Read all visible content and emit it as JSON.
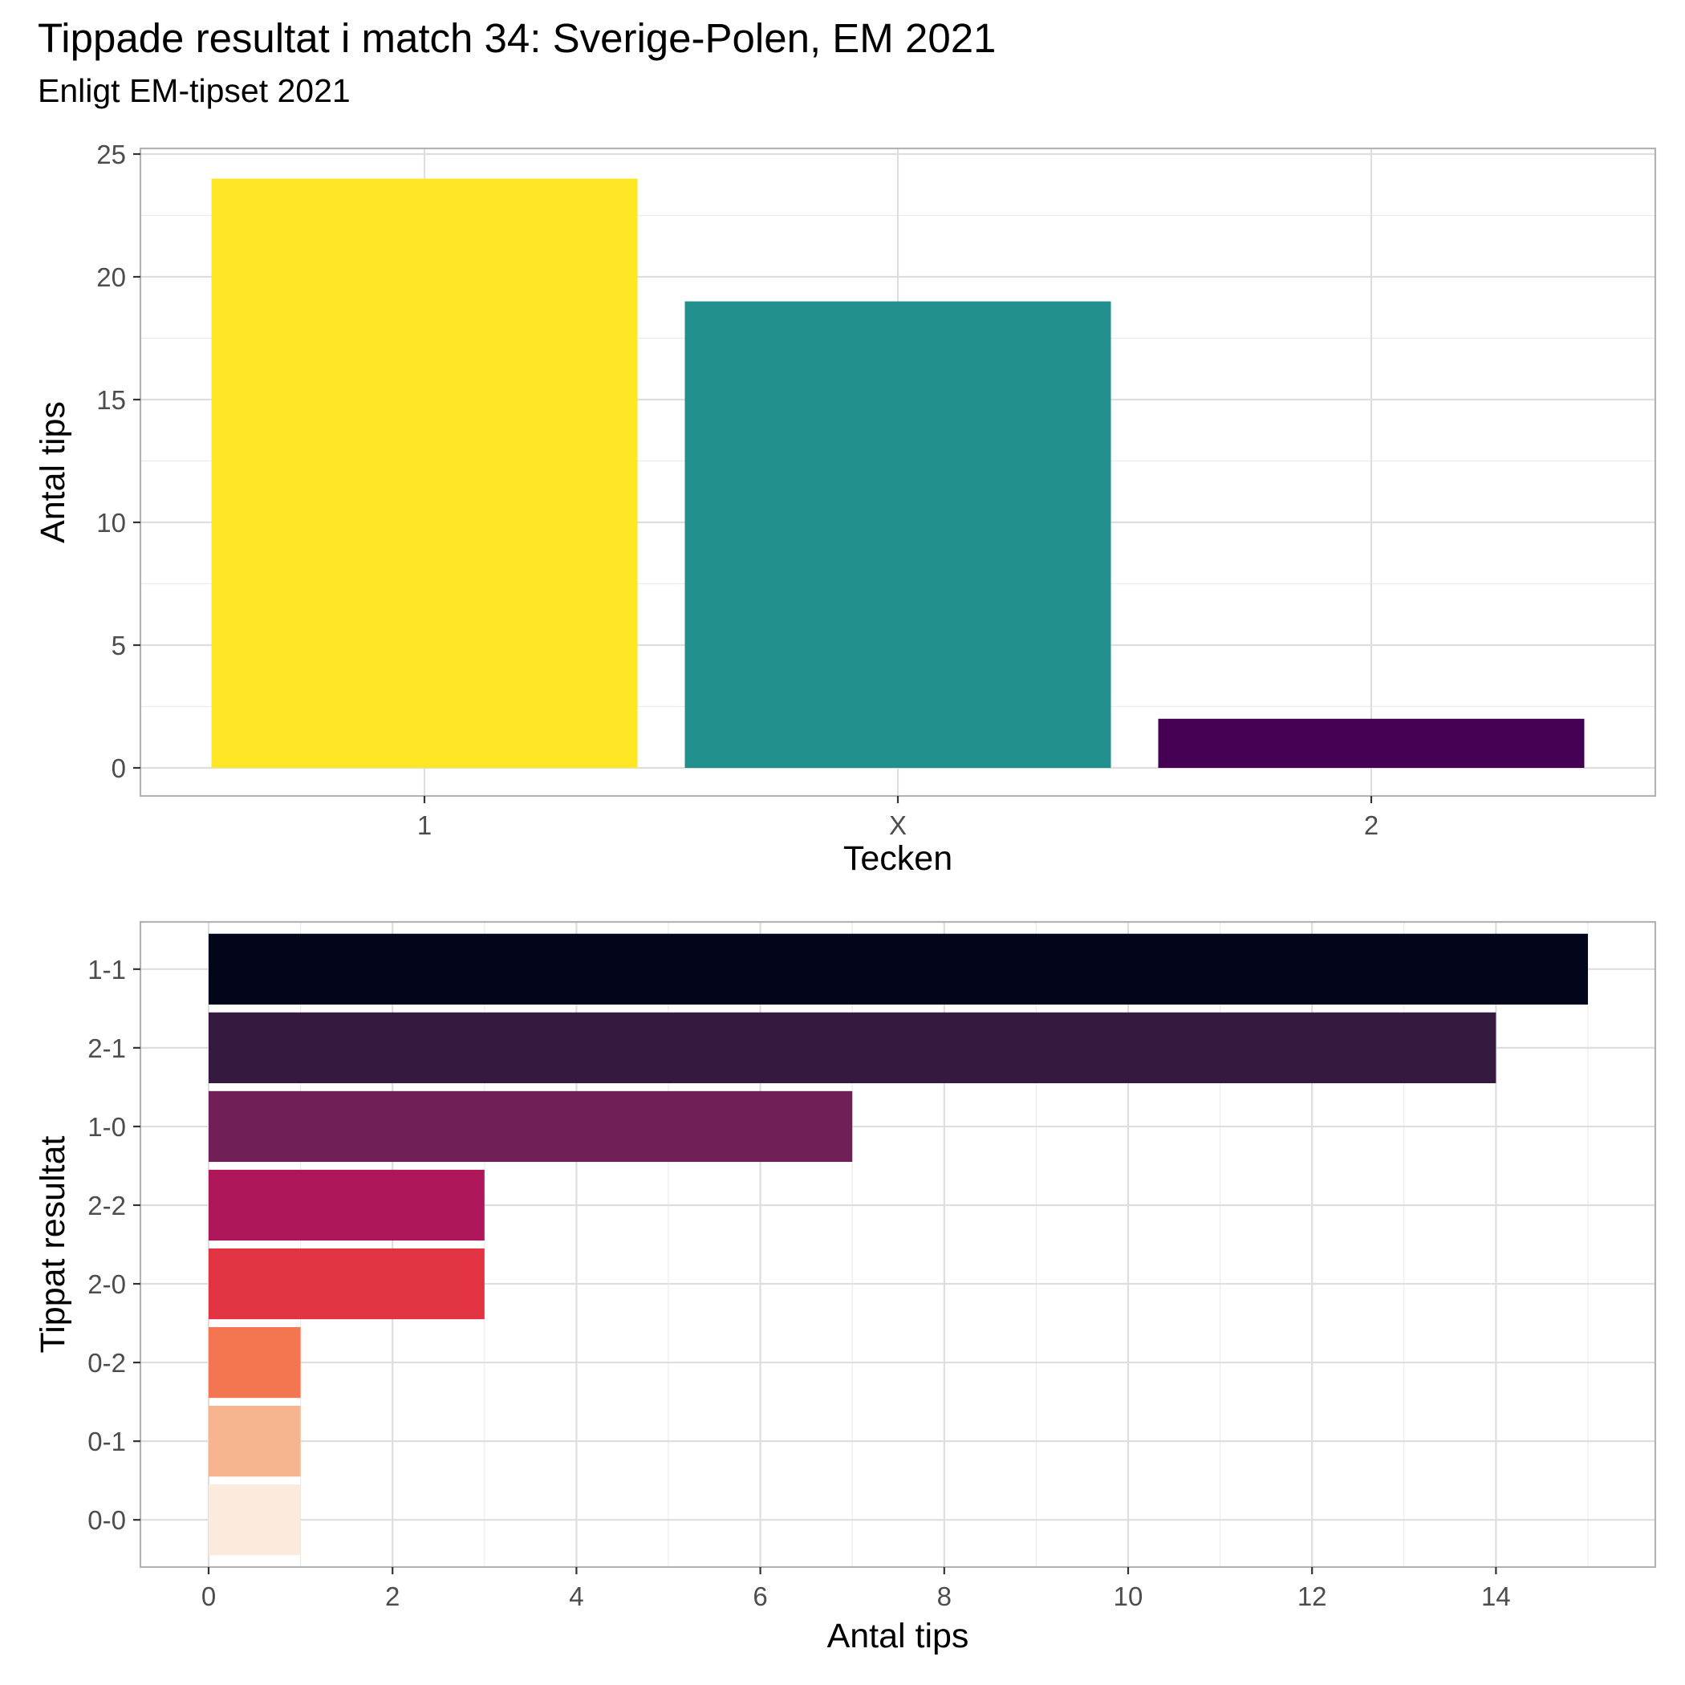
{
  "header": {
    "title": "Tippade resultat i match 34: Sverige-Polen, EM 2021",
    "subtitle": "Enligt EM-tipset 2021"
  },
  "chart_data": [
    {
      "type": "bar",
      "orientation": "vertical",
      "title": "",
      "xlabel": "Tecken",
      "ylabel": "Antal tips",
      "categories": [
        "1",
        "X",
        "2"
      ],
      "values": [
        24,
        19,
        2
      ],
      "colors": [
        "#FDE725",
        "#21908C",
        "#440154"
      ],
      "ylim": [
        0,
        25
      ],
      "yticks": [
        0,
        5,
        10,
        15,
        20,
        25
      ],
      "grid": true,
      "legend": "none"
    },
    {
      "type": "bar",
      "orientation": "horizontal",
      "title": "",
      "xlabel": "Antal tips",
      "ylabel": "Tippat resultat",
      "categories": [
        "1-1",
        "2-1",
        "1-0",
        "2-2",
        "2-0",
        "0-2",
        "0-1",
        "0-0"
      ],
      "values": [
        15,
        14,
        7,
        3,
        3,
        1,
        1,
        1
      ],
      "colors": [
        "#03051A",
        "#35193E",
        "#701F57",
        "#AD1759",
        "#E13342",
        "#F37651",
        "#F6B48F",
        "#FAEBDD"
      ],
      "xlim": [
        0,
        15
      ],
      "xticks": [
        0,
        2,
        4,
        6,
        8,
        10,
        12,
        14
      ],
      "grid": true,
      "legend": "none"
    }
  ]
}
